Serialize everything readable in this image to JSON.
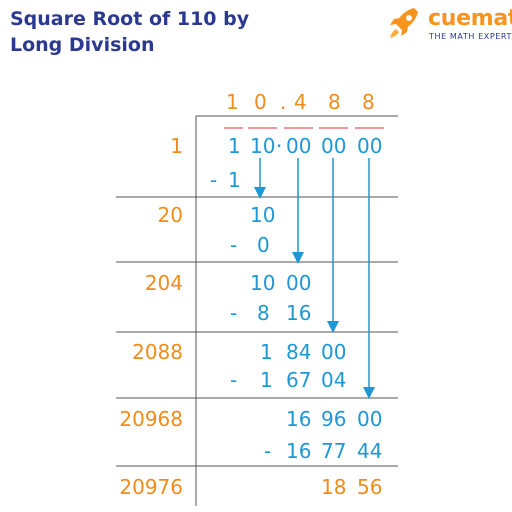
{
  "title": {
    "line1": "Square Root of 110 by",
    "line2": "Long Division"
  },
  "logo": {
    "name": "cuemath",
    "tagline": "THE MATH EXPERT",
    "icon": "rocket-icon"
  },
  "colors": {
    "title": "#2b3990",
    "divisor": "#f08c1a",
    "digits": "#1e97d4",
    "bar": "#e8737a",
    "grid": "#555555"
  },
  "quotient": [
    "1",
    "0",
    ".",
    "4",
    "8",
    "8"
  ],
  "dividend": [
    "1",
    "10",
    "·",
    "00",
    "00",
    "00"
  ],
  "divisors": [
    "1",
    "20",
    "204",
    "2088",
    "20968",
    "20976"
  ],
  "steps": {
    "s1": {
      "minus": "-",
      "sub": "1"
    },
    "s2": {
      "rem": "10",
      "minus": "-",
      "sub": "0"
    },
    "s3": {
      "rem": [
        "10",
        "00"
      ],
      "minus": "-",
      "sub": [
        "8",
        "16"
      ]
    },
    "s4": {
      "rem": [
        "1",
        "84",
        "00"
      ],
      "minus": "-",
      "sub": [
        "1",
        "67",
        "04"
      ]
    },
    "s5": {
      "rem": [
        "16",
        "96",
        "00"
      ],
      "minus": "-",
      "sub": [
        "16",
        "77",
        "44"
      ]
    },
    "final": [
      "18",
      "56"
    ]
  }
}
